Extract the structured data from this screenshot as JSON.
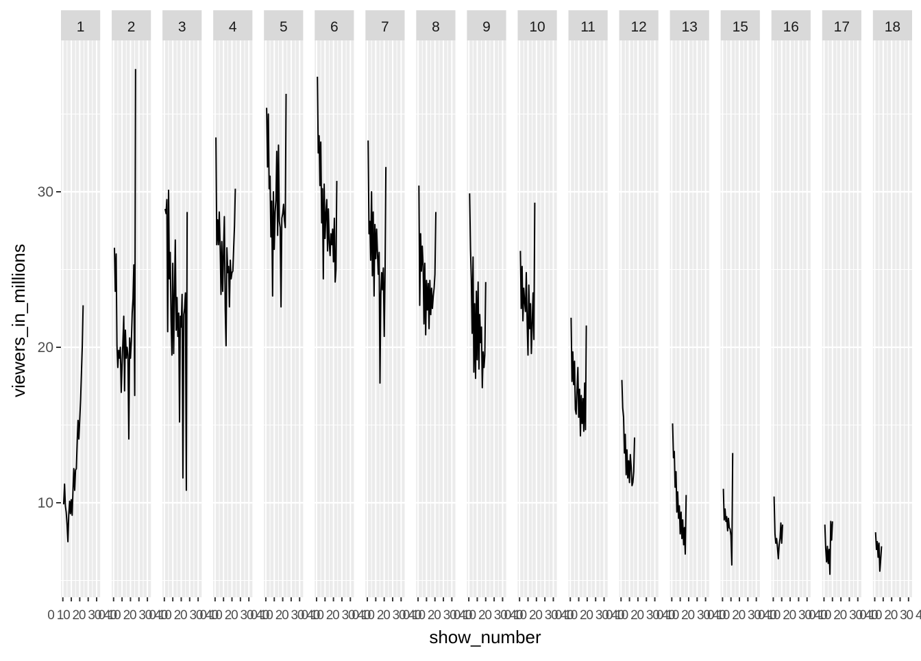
{
  "chart_data": {
    "type": "line",
    "facet_by": "season",
    "facets": [
      "1",
      "2",
      "3",
      "4",
      "5",
      "6",
      "7",
      "8",
      "9",
      "10",
      "11",
      "12",
      "13",
      "15",
      "16",
      "17",
      "18"
    ],
    "xlabel": "show_number",
    "ylabel": "viewers_in_millions",
    "ylim": [
      4,
      37
    ],
    "y_ticks": [
      10,
      20,
      30
    ],
    "x_tick_label_text": "0 10 20 30 40",
    "grid": true,
    "series": [
      {
        "facet": "1",
        "values": [
          9.9,
          11.2,
          9.8,
          9.4,
          8.6,
          7.5,
          9.2,
          10.1,
          9.3,
          10.2,
          9.2,
          10.8,
          12.2,
          10.8,
          12.1,
          12.2,
          14.0,
          15.3,
          14.1,
          15.4,
          16.6,
          18.3,
          20.1,
          22.7
        ]
      },
      {
        "facet": "2",
        "values": [
          26.4,
          23.6,
          26.0,
          20.1,
          18.7,
          19.8,
          19.3,
          20.0,
          17.1,
          18.8,
          20.3,
          22.0,
          17.2,
          21.1,
          19.3,
          20.0,
          19.5,
          14.1,
          20.6,
          19.3,
          20.4,
          22.2,
          23.1,
          25.3,
          16.9,
          37.9
        ]
      },
      {
        "facet": "3",
        "values": [
          28.9,
          28.6,
          29.5,
          21.0,
          30.1,
          24.4,
          26.1,
          21.7,
          19.5,
          25.4,
          19.6,
          23.4,
          26.9,
          21.1,
          23.2,
          20.7,
          22.2,
          15.2,
          22.0,
          21.3,
          23.4,
          11.6,
          22.1,
          22.5,
          23.5,
          10.8,
          28.7
        ]
      },
      {
        "facet": "4",
        "values": [
          33.5,
          26.6,
          28.2,
          26.6,
          28.7,
          26.4,
          23.4,
          26.8,
          23.6,
          26.1,
          28.4,
          22.4,
          20.1,
          26.4,
          24.8,
          25.2,
          22.6,
          25.6,
          24.4,
          24.8,
          24.9,
          26.4,
          27.8,
          30.2
        ]
      },
      {
        "facet": "5",
        "values": [
          35.4,
          31.6,
          35.0,
          30.2,
          31.0,
          27.1,
          29.4,
          23.3,
          30.0,
          26.3,
          28.7,
          29.5,
          32.6,
          27.2,
          33.0,
          28.1,
          27.7,
          22.6,
          28.3,
          28.6,
          29.2,
          28.2,
          27.7,
          36.3
        ]
      },
      {
        "facet": "6",
        "values": [
          37.4,
          32.5,
          33.6,
          30.4,
          33.2,
          28.0,
          30.2,
          24.4,
          30.5,
          27.0,
          28.5,
          29.5,
          26.2,
          28.9,
          26.7,
          25.9,
          27.3,
          26.6,
          27.6,
          25.5,
          28.3,
          24.2,
          25.0,
          30.7
        ]
      },
      {
        "facet": "7",
        "values": [
          33.3,
          27.3,
          28.1,
          25.6,
          30.0,
          24.6,
          28.7,
          23.3,
          27.9,
          25.7,
          27.6,
          26.1,
          24.7,
          26.1,
          17.7,
          23.4,
          24.8,
          23.7,
          25.1,
          20.7,
          24.8,
          31.6
        ]
      },
      {
        "facet": "8",
        "values": [
          30.4,
          22.7,
          27.3,
          24.9,
          26.5,
          25.2,
          21.5,
          25.4,
          20.8,
          24.3,
          22.4,
          24.1,
          21.2,
          24.3,
          22.1,
          23.8,
          22.5,
          23.3,
          23.8,
          24.7,
          28.7
        ]
      },
      {
        "facet": "9",
        "values": [
          29.9,
          26.3,
          24.4,
          20.9,
          25.8,
          18.4,
          22.8,
          18.0,
          23.6,
          19.2,
          24.2,
          18.6,
          22.1,
          20.3,
          21.3,
          17.4,
          19.7,
          18.7,
          19.5,
          24.2
        ]
      },
      {
        "facet": "10",
        "values": [
          26.2,
          22.5,
          25.2,
          21.7,
          23.8,
          22.9,
          22.3,
          24.8,
          21.5,
          19.5,
          24.0,
          21.2,
          22.8,
          19.6,
          21.6,
          23.5,
          20.5,
          29.3
        ]
      },
      {
        "facet": "11",
        "values": [
          21.9,
          17.8,
          19.7,
          17.6,
          19.1,
          16.0,
          15.7,
          17.4,
          18.7,
          15.5,
          17.3,
          14.3,
          16.9,
          15.1,
          16.7,
          14.6,
          17.7,
          14.7,
          21.4
        ]
      },
      {
        "facet": "12",
        "values": [
          17.9,
          16.1,
          15.5,
          13.2,
          14.4,
          11.8,
          13.4,
          11.6,
          12.7,
          11.3,
          13.1,
          12.3,
          11.1,
          11.3,
          12.0,
          14.2
        ]
      },
      {
        "facet": "13",
        "values": [
          15.1,
          12.9,
          13.3,
          11.0,
          12.0,
          9.4,
          10.7,
          9.0,
          9.8,
          8.0,
          9.4,
          7.7,
          8.9,
          7.3,
          8.4,
          6.7,
          10.5
        ]
      },
      {
        "facet": "15",
        "values": [
          10.9,
          8.9,
          9.6,
          8.8,
          9.1,
          8.2,
          9.0,
          8.4,
          8.3,
          7.9,
          6.0,
          13.2
        ]
      },
      {
        "facet": "16",
        "values": [
          10.4,
          8.0,
          7.4,
          7.7,
          7.1,
          6.4,
          7.3,
          7.7,
          8.7,
          7.4,
          8.6
        ]
      },
      {
        "facet": "17",
        "values": [
          8.6,
          7.1,
          6.2,
          7.2,
          6.1,
          7.0,
          5.4,
          8.8,
          7.6,
          8.8
        ]
      },
      {
        "facet": "18",
        "values": [
          8.1,
          7.0,
          7.5,
          6.5,
          7.4,
          5.6,
          6.3,
          7.2
        ]
      }
    ]
  }
}
